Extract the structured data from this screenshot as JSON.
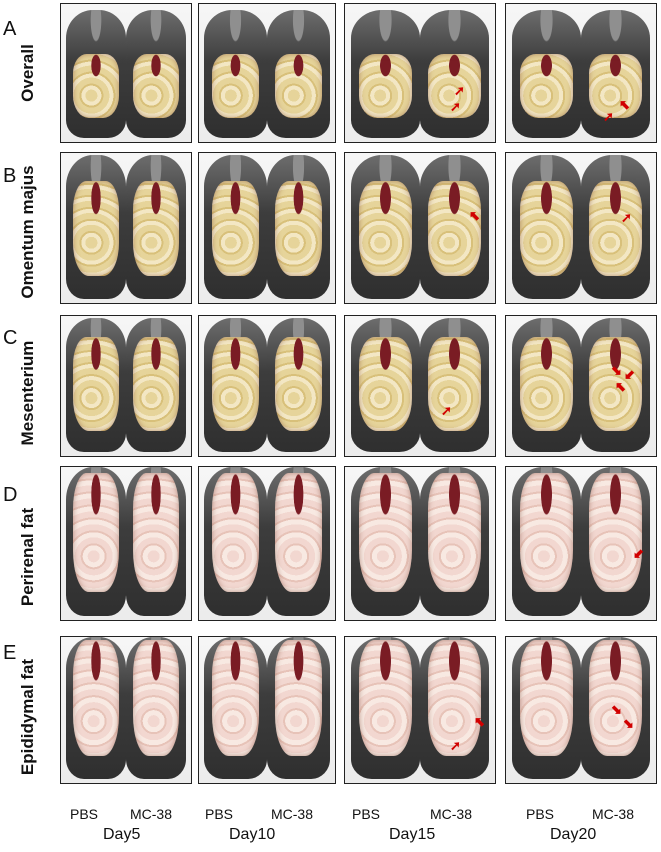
{
  "rows": [
    {
      "letter": "A",
      "label": "Overall"
    },
    {
      "letter": "B",
      "label": "Omentum majus"
    },
    {
      "letter": "C",
      "label": "Mesenterium"
    },
    {
      "letter": "D",
      "label": "Perirenal fat"
    },
    {
      "letter": "E",
      "label": "Epididymal fat"
    }
  ],
  "columns": [
    {
      "day": "Day5",
      "left": "PBS",
      "right": "MC-38"
    },
    {
      "day": "Day10",
      "left": "PBS",
      "right": "MC-38"
    },
    {
      "day": "Day15",
      "left": "PBS",
      "right": "MC-38"
    },
    {
      "day": "Day20",
      "left": "PBS",
      "right": "MC-38"
    }
  ],
  "colors": {
    "arrow": "#d10000",
    "border": "#222222"
  }
}
